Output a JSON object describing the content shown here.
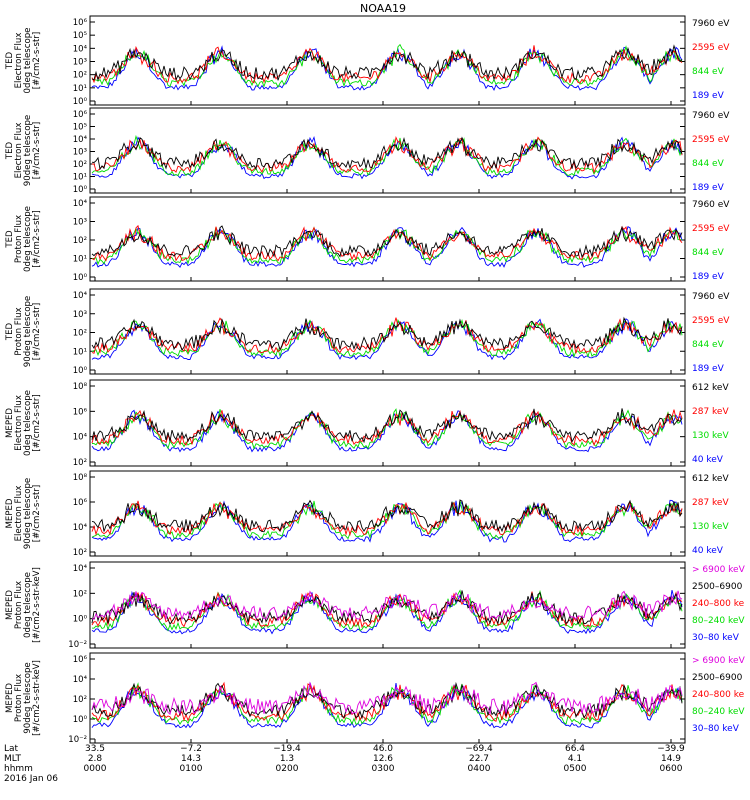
{
  "title": "NOAA19",
  "date_label": "2016 Jan 06",
  "chart_data": [
    {
      "type": "scatter",
      "ylabel": [
        "TED",
        "Electron Flux",
        "0deg telescope",
        "[#/cm2-s-str]"
      ],
      "y_log": true,
      "y_ticks": [
        "10⁰",
        "10¹",
        "10²",
        "10³",
        "10⁴",
        "10⁵",
        "10⁶"
      ],
      "y_exponents": [
        0,
        1,
        2,
        3,
        4,
        5,
        6
      ],
      "legend": [
        {
          "label": "7960 eV",
          "color": "#000000"
        },
        {
          "label": "2595 eV",
          "color": "#ff0000"
        },
        {
          "label": "844 eV",
          "color": "#00dd00"
        },
        {
          "label": "189 eV",
          "color": "#0000ff"
        }
      ]
    },
    {
      "type": "scatter",
      "ylabel": [
        "TED",
        "Electron Flux",
        "90deg telescope",
        "[#/cm2-s-str]"
      ],
      "y_log": true,
      "y_ticks": [
        "10⁰",
        "10¹",
        "10²",
        "10³",
        "10⁴",
        "10⁵",
        "10⁶"
      ],
      "y_exponents": [
        0,
        1,
        2,
        3,
        4,
        5,
        6
      ],
      "legend": [
        {
          "label": "7960 eV",
          "color": "#000000"
        },
        {
          "label": "2595 eV",
          "color": "#ff0000"
        },
        {
          "label": "844 eV",
          "color": "#00dd00"
        },
        {
          "label": "189 eV",
          "color": "#0000ff"
        }
      ]
    },
    {
      "type": "scatter",
      "ylabel": [
        "TED",
        "Proton Flux",
        "0deg telescope",
        "[#/cm2-s-str]"
      ],
      "y_log": true,
      "y_ticks": [
        "10⁰",
        "10¹",
        "10²",
        "10³",
        "10⁴"
      ],
      "y_exponents": [
        0,
        1,
        2,
        3,
        4
      ],
      "legend": [
        {
          "label": "7960 eV",
          "color": "#000000"
        },
        {
          "label": "2595 eV",
          "color": "#ff0000"
        },
        {
          "label": "844 eV",
          "color": "#00dd00"
        },
        {
          "label": "189 eV",
          "color": "#0000ff"
        }
      ]
    },
    {
      "type": "scatter",
      "ylabel": [
        "TED",
        "Proton Flux",
        "90deg telescope",
        "[#/cm2-s-str]"
      ],
      "y_log": true,
      "y_ticks": [
        "10⁰",
        "10¹",
        "10²",
        "10³",
        "10⁴"
      ],
      "y_exponents": [
        0,
        1,
        2,
        3,
        4
      ],
      "legend": [
        {
          "label": "7960 eV",
          "color": "#000000"
        },
        {
          "label": "2595 eV",
          "color": "#ff0000"
        },
        {
          "label": "844 eV",
          "color": "#00dd00"
        },
        {
          "label": "189 eV",
          "color": "#0000ff"
        }
      ]
    },
    {
      "type": "scatter",
      "ylabel": [
        "MEPED",
        "Electron Flux",
        "0deg telescope",
        "[#/cm2-s-str]"
      ],
      "y_log": true,
      "y_ticks": [
        "10²",
        "10⁴",
        "10⁶",
        "10⁸"
      ],
      "y_exponents": [
        2,
        4,
        6,
        8
      ],
      "legend": [
        {
          "label": "612 keV",
          "color": "#000000"
        },
        {
          "label": "287 keV",
          "color": "#ff0000"
        },
        {
          "label": "130 keV",
          "color": "#00dd00"
        },
        {
          "label": "40 keV",
          "color": "#0000ff"
        }
      ]
    },
    {
      "type": "scatter",
      "ylabel": [
        "MEPED",
        "Electron Flux",
        "90deg telescope",
        "[#/cm2-s-str]"
      ],
      "y_log": true,
      "y_ticks": [
        "10²",
        "10⁴",
        "10⁶",
        "10⁸"
      ],
      "y_exponents": [
        2,
        4,
        6,
        8
      ],
      "legend": [
        {
          "label": "612 keV",
          "color": "#000000"
        },
        {
          "label": "287 keV",
          "color": "#ff0000"
        },
        {
          "label": "130 keV",
          "color": "#00dd00"
        },
        {
          "label": "40 keV",
          "color": "#0000ff"
        }
      ]
    },
    {
      "type": "scatter",
      "ylabel": [
        "MEPED",
        "Proton Flux",
        "0deg telescope",
        "[#/cm2-s-str-keV]"
      ],
      "y_log": true,
      "y_ticks": [
        "10⁻²",
        "10⁰",
        "10²",
        "10⁴"
      ],
      "y_exponents": [
        -2,
        0,
        2,
        4
      ],
      "legend": [
        {
          "label": "> 6900 keV",
          "color": "#dd00dd"
        },
        {
          "label": "2500–6900",
          "color": "#000000"
        },
        {
          "label": "240–800 ke",
          "color": "#ff0000"
        },
        {
          "label": "80–240 keV",
          "color": "#00dd00"
        },
        {
          "label": "30–80 keV",
          "color": "#0000ff"
        }
      ]
    },
    {
      "type": "scatter",
      "ylabel": [
        "MEPED",
        "Proton Flux",
        "90deg telescope",
        "[#/cm2-s-str-keV]"
      ],
      "y_log": true,
      "y_ticks": [
        "10⁻²",
        "10⁰",
        "10²",
        "10⁴",
        "10⁶"
      ],
      "y_exponents": [
        -2,
        0,
        2,
        4,
        6
      ],
      "legend": [
        {
          "label": "> 6900 keV",
          "color": "#dd00dd"
        },
        {
          "label": "2500–6900",
          "color": "#000000"
        },
        {
          "label": "240–800 ke",
          "color": "#ff0000"
        },
        {
          "label": "80–240 keV",
          "color": "#00dd00"
        },
        {
          "label": "30–80 keV",
          "color": "#0000ff"
        }
      ]
    }
  ],
  "x_axis": {
    "row_labels": [
      "Lat",
      "MLT",
      "hhmm"
    ],
    "ticks": [
      {
        "lat": "33.5",
        "mlt": "2.8",
        "hhmm": "0000"
      },
      {
        "lat": "−7.2",
        "mlt": "14.3",
        "hhmm": "0100"
      },
      {
        "lat": "−19.4",
        "mlt": "1.3",
        "hhmm": "0200"
      },
      {
        "lat": "46.0",
        "mlt": "12.6",
        "hhmm": "0300"
      },
      {
        "lat": "−69.4",
        "mlt": "22.7",
        "hhmm": "0400"
      },
      {
        "lat": "66.4",
        "mlt": "4.1",
        "hhmm": "0500"
      },
      {
        "lat": "−39.9",
        "mlt": "14.9",
        "hhmm": "0600"
      }
    ]
  }
}
